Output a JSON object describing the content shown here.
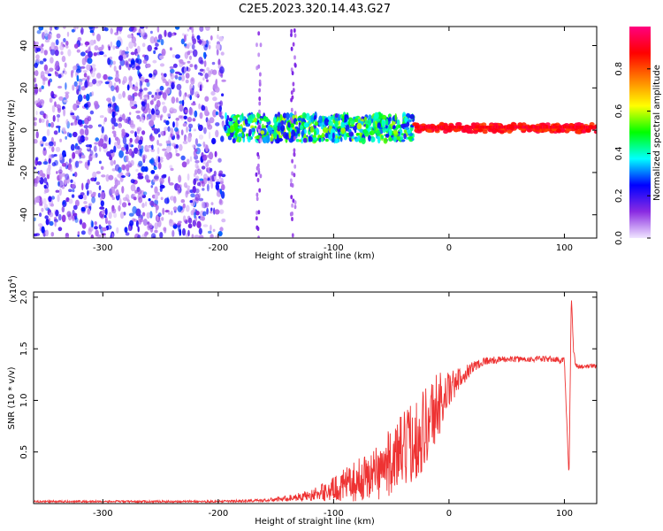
{
  "chart_data": [
    {
      "type": "heatmap",
      "title": "C2E5.2023.320.14.43.G27",
      "xlabel": "Height of straight line (km)",
      "ylabel": "Frequency (Hz)",
      "xlim": [
        -360,
        128
      ],
      "ylim": [
        -51,
        49
      ],
      "xticks": [
        -300,
        -200,
        -100,
        0,
        100
      ],
      "yticks": [
        -40,
        -20,
        0,
        20,
        40
      ],
      "colorbar": {
        "label": "Normalized spectral amplitude",
        "range": [
          0.0,
          1.0
        ],
        "ticks": [
          "0.0",
          "0.2",
          "0.4",
          "0.6",
          "0.8"
        ],
        "colormap": [
          "#f0e6ff",
          "#8a2be2",
          "#0000ff",
          "#00ffff",
          "#00ff00",
          "#ffff00",
          "#ff8000",
          "#ff0000",
          "#ff0080"
        ]
      },
      "description_regions": [
        {
          "x_range": [
            -360,
            -195
          ],
          "y_range": [
            -51,
            49
          ],
          "amplitude": [
            0.05,
            0.3
          ]
        },
        {
          "x_range": [
            -195,
            -30
          ],
          "y_range": [
            -5,
            7
          ],
          "amplitude": [
            0.2,
            0.6
          ]
        },
        {
          "x_range": [
            -30,
            128
          ],
          "y_range": [
            -1,
            3
          ],
          "amplitude": [
            0.8,
            0.95
          ]
        }
      ]
    },
    {
      "type": "line",
      "xlabel": "Height of straight line (km)",
      "ylabel": "SNR (10 * v/v)",
      "exponent_label": "(x10",
      "exponent_power": "4",
      "exponent_close": ")",
      "xlim": [
        -360,
        128
      ],
      "ylim": [
        0,
        2.05
      ],
      "xticks": [
        -300,
        -200,
        -100,
        0,
        100
      ],
      "yticks": [
        "0.5",
        "1.0",
        "1.5",
        "2.0"
      ],
      "color": "#ee3333",
      "x": [
        -360,
        -300,
        -250,
        -200,
        -160,
        -140,
        -120,
        -100,
        -80,
        -60,
        -40,
        -20,
        -10,
        0,
        10,
        20,
        30,
        50,
        70,
        90,
        100,
        104,
        106,
        108,
        110,
        115,
        120,
        128
      ],
      "y": [
        0.02,
        0.02,
        0.02,
        0.02,
        0.03,
        0.05,
        0.08,
        0.14,
        0.22,
        0.32,
        0.5,
        0.75,
        0.95,
        1.1,
        1.22,
        1.32,
        1.38,
        1.4,
        1.4,
        1.4,
        1.38,
        0.25,
        2.02,
        1.45,
        1.33,
        1.33,
        1.33,
        1.33
      ],
      "noise_amplitude": [
        0.01,
        0.01,
        0.01,
        0.01,
        0.015,
        0.03,
        0.05,
        0.12,
        0.2,
        0.28,
        0.38,
        0.42,
        0.35,
        0.18,
        0.1,
        0.06,
        0.04,
        0.03,
        0.03,
        0.03,
        0.04,
        0.0,
        0.0,
        0.08,
        0.03,
        0.02,
        0.02,
        0.02
      ]
    }
  ]
}
